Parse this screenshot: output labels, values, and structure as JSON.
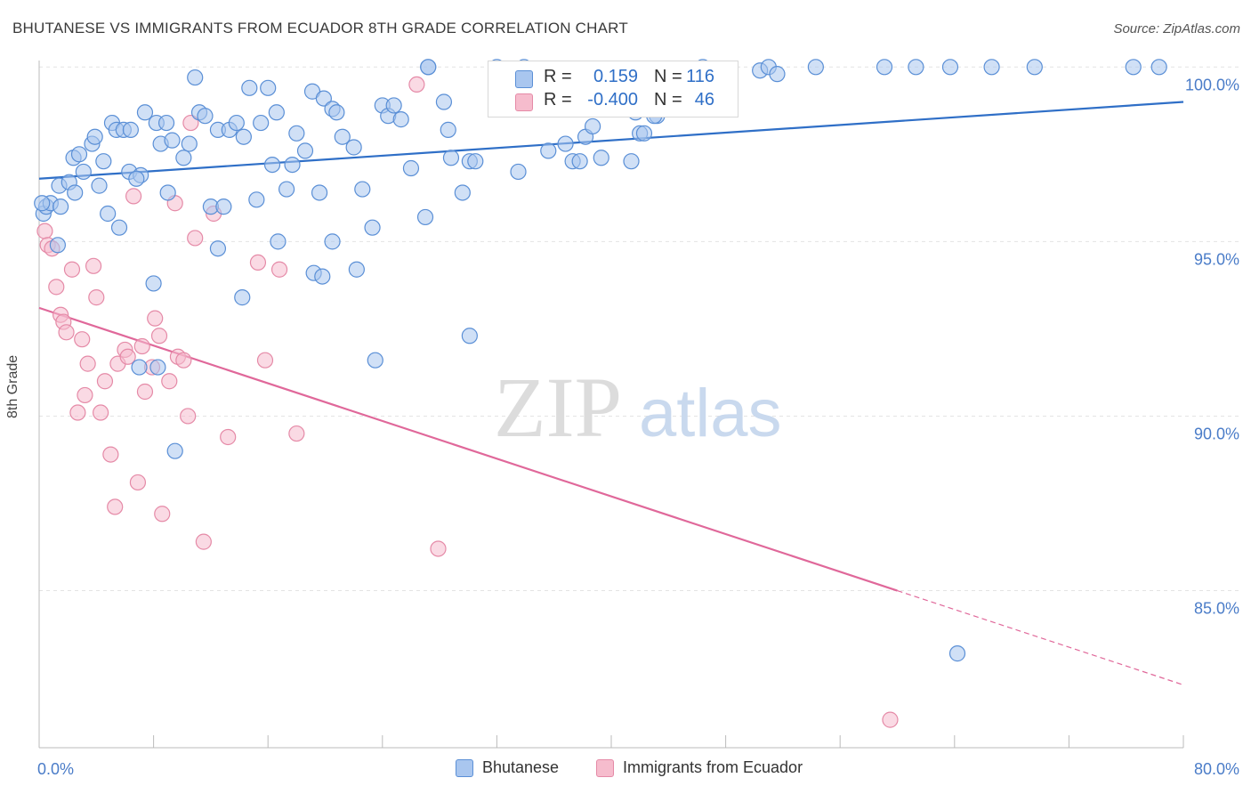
{
  "header": {
    "title": "BHUTANESE VS IMMIGRANTS FROM ECUADOR 8TH GRADE CORRELATION CHART",
    "source": "Source: ZipAtlas.com"
  },
  "watermark": {
    "zip": "ZIP",
    "atlas": "atlas"
  },
  "colors": {
    "blue_fill": "#a9c6ef",
    "blue_stroke": "#5a8fd6",
    "blue_line": "#2f6fc7",
    "pink_fill": "#f6bccd",
    "pink_stroke": "#e58aa7",
    "pink_line": "#e0689a",
    "tick_label": "#4a7cc8"
  },
  "legend": {
    "rows": [
      {
        "r_label": "R =",
        "r_value": "0.159",
        "n_label": "N =",
        "n_value": "116"
      },
      {
        "r_label": "R =",
        "r_value": "-0.400",
        "n_label": "N =",
        "n_value": "46"
      }
    ]
  },
  "chart_data": {
    "type": "scatter",
    "title": "BHUTANESE VS IMMIGRANTS FROM ECUADOR 8TH GRADE CORRELATION CHART",
    "xlabel": "",
    "ylabel": "8th Grade",
    "xlim": [
      0,
      80
    ],
    "ylim": [
      80.5,
      100.9
    ],
    "x_tick_labels": [
      "0.0%",
      "80.0%"
    ],
    "y_ticks": [
      85,
      90,
      95,
      100
    ],
    "y_tick_labels": [
      "85.0%",
      "90.0%",
      "95.0%",
      "100.0%"
    ],
    "grid": true,
    "legend_position": "bottom",
    "series": [
      {
        "name": "Bhutanese",
        "color": "#a9c6ef",
        "trend": {
          "x0": 0,
          "y0": 96.8,
          "x1": 80,
          "y1": 99.0,
          "dashed_from": null
        },
        "points": [
          [
            0.3,
            95.8
          ],
          [
            0.5,
            96.0
          ],
          [
            0.8,
            96.1
          ],
          [
            1.3,
            94.9
          ],
          [
            1.5,
            96.0
          ],
          [
            1.4,
            96.6
          ],
          [
            2.1,
            96.7
          ],
          [
            2.4,
            97.4
          ],
          [
            2.8,
            97.5
          ],
          [
            3.1,
            97.0
          ],
          [
            3.7,
            97.8
          ],
          [
            3.9,
            98.0
          ],
          [
            4.2,
            96.6
          ],
          [
            4.5,
            97.3
          ],
          [
            4.8,
            95.8
          ],
          [
            5.1,
            98.4
          ],
          [
            5.4,
            98.2
          ],
          [
            5.9,
            98.2
          ],
          [
            6.4,
            98.2
          ],
          [
            6.3,
            97.0
          ],
          [
            7.1,
            96.9
          ],
          [
            7.4,
            98.7
          ],
          [
            8.2,
            98.4
          ],
          [
            8.5,
            97.8
          ],
          [
            8.9,
            98.4
          ],
          [
            9.3,
            97.9
          ],
          [
            10.1,
            97.4
          ],
          [
            10.5,
            97.8
          ],
          [
            10.9,
            99.7
          ],
          [
            11.2,
            98.7
          ],
          [
            11.6,
            98.6
          ],
          [
            12.0,
            96.0
          ],
          [
            12.5,
            98.2
          ],
          [
            12.9,
            96.0
          ],
          [
            13.3,
            98.2
          ],
          [
            13.8,
            98.4
          ],
          [
            14.3,
            98.0
          ],
          [
            14.7,
            99.4
          ],
          [
            15.2,
            96.2
          ],
          [
            15.5,
            98.4
          ],
          [
            16.0,
            99.4
          ],
          [
            16.3,
            97.2
          ],
          [
            16.6,
            98.7
          ],
          [
            17.3,
            96.5
          ],
          [
            17.7,
            97.2
          ],
          [
            18.0,
            98.1
          ],
          [
            18.6,
            97.6
          ],
          [
            19.1,
            99.3
          ],
          [
            19.6,
            96.4
          ],
          [
            19.9,
            99.1
          ],
          [
            20.5,
            98.8
          ],
          [
            20.8,
            98.7
          ],
          [
            21.2,
            98.0
          ],
          [
            22.0,
            97.7
          ],
          [
            22.6,
            96.5
          ],
          [
            23.3,
            95.4
          ],
          [
            24.0,
            98.9
          ],
          [
            24.4,
            98.6
          ],
          [
            24.8,
            98.9
          ],
          [
            25.3,
            98.5
          ],
          [
            26.0,
            97.1
          ],
          [
            27.2,
            100.0
          ],
          [
            27.2,
            100.0
          ],
          [
            28.3,
            99.0
          ],
          [
            28.6,
            98.2
          ],
          [
            28.8,
            97.4
          ],
          [
            30.1,
            97.3
          ],
          [
            30.5,
            97.3
          ],
          [
            32.0,
            100.0
          ],
          [
            33.0,
            99.0
          ],
          [
            32.7,
            98.9
          ],
          [
            33.5,
            97.0
          ],
          [
            33.9,
            100.0
          ],
          [
            34.8,
            99.1
          ],
          [
            35.3,
            99.4
          ],
          [
            35.6,
            97.6
          ],
          [
            36.8,
            97.8
          ],
          [
            37.3,
            97.3
          ],
          [
            37.8,
            97.3
          ],
          [
            38.2,
            98.0
          ],
          [
            38.7,
            98.3
          ],
          [
            39.3,
            97.4
          ],
          [
            40.2,
            99.0
          ],
          [
            40.5,
            98.8
          ],
          [
            41.7,
            98.7
          ],
          [
            42.0,
            98.1
          ],
          [
            42.3,
            98.1
          ],
          [
            42.6,
            99.0
          ],
          [
            43.2,
            98.6
          ],
          [
            44.0,
            98.8
          ],
          [
            41.4,
            97.3
          ],
          [
            43.0,
            98.6
          ],
          [
            46.4,
            100.0
          ],
          [
            47.0,
            99.8
          ],
          [
            50.4,
            99.9
          ],
          [
            51.0,
            100.0
          ],
          [
            51.6,
            99.8
          ],
          [
            54.3,
            100.0
          ],
          [
            59.1,
            100.0
          ],
          [
            61.3,
            100.0
          ],
          [
            63.7,
            100.0
          ],
          [
            66.6,
            100.0
          ],
          [
            69.6,
            100.0
          ],
          [
            76.5,
            100.0
          ],
          [
            78.3,
            100.0
          ],
          [
            8.0,
            93.8
          ],
          [
            12.5,
            94.8
          ],
          [
            14.2,
            93.4
          ],
          [
            16.7,
            95.0
          ],
          [
            19.2,
            94.1
          ],
          [
            19.8,
            94.0
          ],
          [
            20.5,
            95.0
          ],
          [
            22.2,
            94.2
          ],
          [
            27.0,
            95.7
          ],
          [
            7.0,
            91.4
          ],
          [
            8.3,
            91.4
          ],
          [
            9.5,
            89.0
          ],
          [
            23.5,
            91.6
          ],
          [
            30.1,
            92.3
          ],
          [
            64.2,
            83.2
          ],
          [
            0.2,
            96.1
          ],
          [
            2.5,
            96.4
          ],
          [
            6.8,
            96.8
          ],
          [
            9.0,
            96.4
          ],
          [
            5.6,
            95.4
          ],
          [
            29.6,
            96.4
          ]
        ]
      },
      {
        "name": "Immigrants from Ecuador",
        "color": "#f6bccd",
        "trend": {
          "x0": 0,
          "y0": 93.1,
          "x1": 80,
          "y1": 82.3,
          "dashed_from": 60
        },
        "points": [
          [
            0.4,
            95.3
          ],
          [
            0.6,
            94.9
          ],
          [
            0.9,
            94.8
          ],
          [
            1.2,
            93.7
          ],
          [
            1.5,
            92.9
          ],
          [
            1.7,
            92.7
          ],
          [
            1.9,
            92.4
          ],
          [
            2.3,
            94.2
          ],
          [
            2.7,
            90.1
          ],
          [
            3.0,
            92.2
          ],
          [
            3.2,
            90.6
          ],
          [
            3.4,
            91.5
          ],
          [
            3.8,
            94.3
          ],
          [
            4.0,
            93.4
          ],
          [
            4.3,
            90.1
          ],
          [
            4.6,
            91.0
          ],
          [
            5.0,
            88.9
          ],
          [
            5.3,
            87.4
          ],
          [
            5.5,
            91.5
          ],
          [
            6.0,
            91.9
          ],
          [
            6.2,
            91.7
          ],
          [
            6.6,
            96.3
          ],
          [
            6.9,
            88.1
          ],
          [
            7.2,
            92.0
          ],
          [
            7.4,
            90.7
          ],
          [
            7.9,
            91.4
          ],
          [
            8.1,
            92.8
          ],
          [
            8.4,
            92.3
          ],
          [
            8.6,
            87.2
          ],
          [
            9.1,
            91.0
          ],
          [
            9.5,
            96.1
          ],
          [
            9.7,
            91.7
          ],
          [
            10.1,
            91.6
          ],
          [
            10.4,
            90.0
          ],
          [
            10.6,
            98.4
          ],
          [
            10.9,
            95.1
          ],
          [
            11.5,
            86.4
          ],
          [
            12.2,
            95.8
          ],
          [
            13.2,
            89.4
          ],
          [
            15.3,
            94.4
          ],
          [
            15.8,
            91.6
          ],
          [
            16.8,
            94.2
          ],
          [
            18.0,
            89.5
          ],
          [
            26.4,
            99.5
          ],
          [
            27.9,
            86.2
          ],
          [
            59.5,
            81.3
          ]
        ]
      }
    ]
  },
  "bottom_legend": {
    "items": [
      {
        "label": "Bhutanese"
      },
      {
        "label": "Immigrants from Ecuador"
      }
    ]
  }
}
